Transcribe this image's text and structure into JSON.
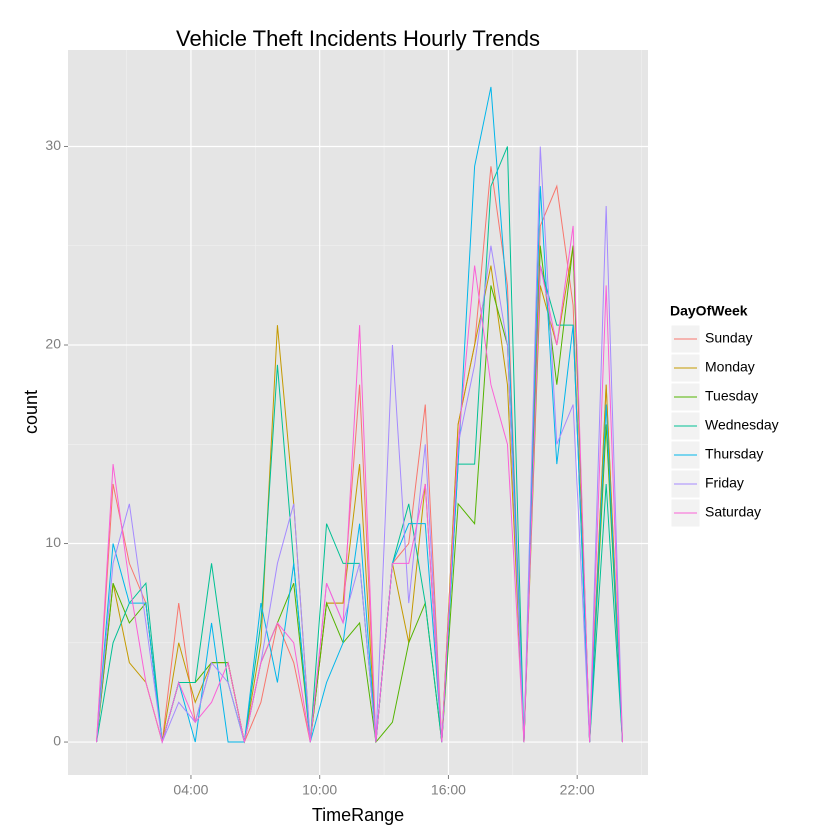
{
  "chart_data": {
    "type": "line",
    "title": "Vehicle Theft Incidents Hourly Trends",
    "x_label": "TimeRange",
    "y_label": "count",
    "legend_title": "DayOfWeek",
    "legend_position": "right",
    "grid": true,
    "x": [
      -0.4,
      0.37,
      1.13,
      1.9,
      2.66,
      3.43,
      4.2,
      4.96,
      5.73,
      6.49,
      7.26,
      8.03,
      8.79,
      9.56,
      10.32,
      11.09,
      11.86,
      12.62,
      13.39,
      14.15,
      14.92,
      15.69,
      16.45,
      17.22,
      17.98,
      18.75,
      19.52,
      20.28,
      21.05,
      21.81,
      22.58,
      23.35,
      24.11
    ],
    "xlim": [
      -1.73,
      25.3
    ],
    "xticks": [
      {
        "value": 4,
        "label": "04:00"
      },
      {
        "value": 10,
        "label": "10:00"
      },
      {
        "value": 16,
        "label": "16:00"
      },
      {
        "value": 22,
        "label": "22:00"
      }
    ],
    "ylim": [
      -1.66,
      34.86
    ],
    "yticks": [
      0,
      10,
      20,
      30
    ],
    "series": [
      {
        "name": "Sunday",
        "color": "#F8766D",
        "values": [
          0,
          13,
          9,
          7,
          0,
          7,
          1,
          4,
          4,
          0,
          2,
          6,
          4,
          0,
          7,
          7,
          18,
          0,
          9,
          10,
          17,
          0,
          16,
          20,
          29,
          23,
          0,
          26,
          28,
          22,
          0,
          18,
          0
        ]
      },
      {
        "name": "Monday",
        "color": "#C49A00",
        "values": [
          0,
          8,
          4,
          3,
          0,
          5,
          2,
          4,
          4,
          0,
          5,
          21,
          12,
          0,
          7,
          7,
          14,
          0,
          9,
          5,
          13,
          0,
          16,
          20,
          24,
          18,
          0,
          23,
          20,
          25,
          0,
          18,
          0
        ]
      },
      {
        "name": "Tuesday",
        "color": "#53B400",
        "values": [
          0,
          8,
          6,
          7,
          0,
          3,
          3,
          4,
          4,
          0,
          4,
          6,
          8,
          0,
          7,
          5,
          6,
          0,
          1,
          5,
          7,
          0,
          12,
          11,
          23,
          20,
          0,
          25,
          18,
          25,
          0,
          16,
          0
        ]
      },
      {
        "name": "Wednesday",
        "color": "#00C094",
        "values": [
          0,
          5,
          7,
          8,
          0,
          3,
          3,
          9,
          3,
          0,
          6,
          19,
          9,
          0,
          11,
          9,
          9,
          0,
          9,
          12,
          7,
          0,
          14,
          14,
          28,
          30,
          0,
          24,
          21,
          21,
          0,
          13,
          0
        ]
      },
      {
        "name": "Thursday",
        "color": "#00B6EB",
        "values": [
          0,
          10,
          7,
          7,
          0,
          3,
          0,
          6,
          0,
          0,
          7,
          3,
          9,
          0,
          3,
          5,
          11,
          0,
          9,
          11,
          11,
          0,
          14,
          29,
          33,
          22,
          0,
          28,
          14,
          21,
          0,
          17,
          0
        ]
      },
      {
        "name": "Friday",
        "color": "#A58AFF",
        "values": [
          0,
          9,
          12,
          6,
          0,
          2,
          1,
          4,
          3,
          0,
          4,
          9,
          12,
          0,
          8,
          6,
          9,
          0,
          20,
          7,
          15,
          0,
          15,
          19,
          25,
          20,
          0,
          30,
          15,
          17,
          0,
          27,
          0
        ]
      },
      {
        "name": "Saturday",
        "color": "#FB61D7",
        "values": [
          0,
          14,
          8,
          3,
          0,
          3,
          1,
          2,
          4,
          0,
          4,
          6,
          5,
          0,
          8,
          6,
          21,
          0,
          9,
          9,
          13,
          0,
          15,
          24,
          18,
          15,
          0,
          24,
          20,
          26,
          0,
          23,
          0
        ]
      }
    ]
  }
}
